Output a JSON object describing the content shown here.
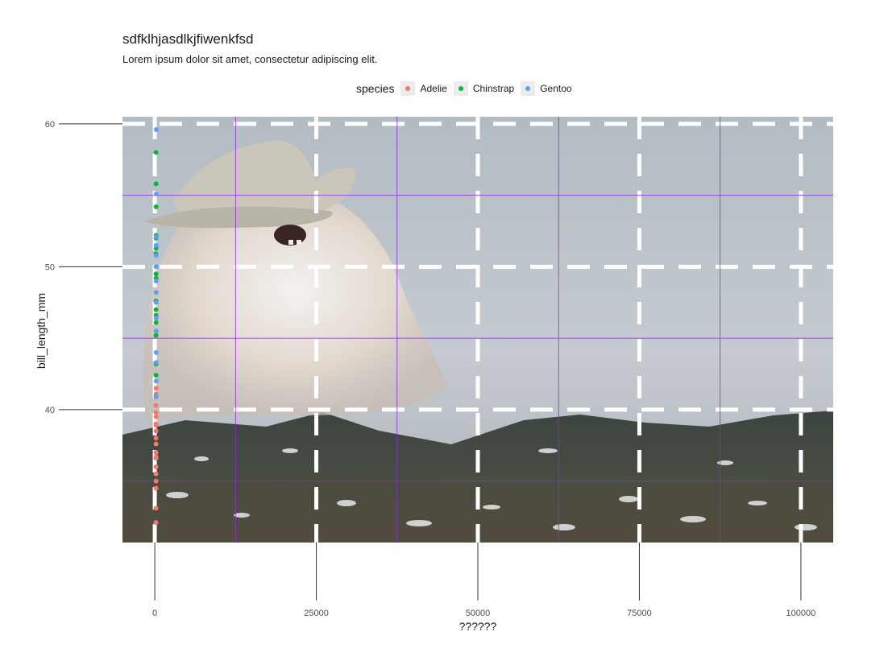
{
  "chart_data": {
    "type": "scatter",
    "title": "sdfklhjasdlkjfiwenkfsd",
    "subtitle": "Lorem ipsum dolor sit amet, consectetur adipiscing elit.",
    "xlabel": "??????",
    "ylabel": "bill_length_mm",
    "xlim": [
      -5000,
      105000
    ],
    "ylim": [
      30.7,
      60.5
    ],
    "x_ticks": [
      0,
      25000,
      50000,
      75000,
      100000
    ],
    "x_tick_labels": [
      "0",
      "25000",
      "50000",
      "75000",
      "100000"
    ],
    "y_ticks": [
      40,
      50,
      60
    ],
    "y_tick_labels": [
      "40",
      "50",
      "60"
    ],
    "grid": true,
    "legend": {
      "title": "species",
      "position": "top"
    },
    "background": "photo of a fluffy cat wearing a cowboy hat in a mountain landscape",
    "series": [
      {
        "name": "Adelie",
        "color": "#F8766D",
        "points": [
          [
            181,
            32.1
          ],
          [
            186,
            33.1
          ],
          [
            190,
            34.5
          ],
          [
            193,
            35.0
          ],
          [
            186,
            35.5
          ],
          [
            190,
            36.0
          ],
          [
            192,
            36.6
          ],
          [
            181,
            37.0
          ],
          [
            190,
            37.6
          ],
          [
            184,
            38.0
          ],
          [
            195,
            38.5
          ],
          [
            186,
            38.9
          ],
          [
            180,
            39.0
          ],
          [
            191,
            39.5
          ],
          [
            187,
            39.8
          ],
          [
            193,
            40.3
          ],
          [
            188,
            40.9
          ],
          [
            191,
            41.1
          ],
          [
            196,
            41.5
          ],
          [
            190,
            36.7
          ]
        ]
      },
      {
        "name": "Chinstrap",
        "color": "#00BA38",
        "points": [
          [
            192,
            40.9
          ],
          [
            195,
            42.4
          ],
          [
            196,
            43.2
          ],
          [
            193,
            45.2
          ],
          [
            201,
            46.1
          ],
          [
            195,
            46.6
          ],
          [
            190,
            47.0
          ],
          [
            197,
            47.6
          ],
          [
            198,
            49.2
          ],
          [
            193,
            49.5
          ],
          [
            201,
            50.0
          ],
          [
            195,
            50.9
          ],
          [
            197,
            51.3
          ],
          [
            198,
            52.0
          ],
          [
            203,
            52.2
          ],
          [
            195,
            54.2
          ],
          [
            198,
            55.8
          ],
          [
            193,
            58.0
          ]
        ]
      },
      {
        "name": "Gentoo",
        "color": "#619CFF",
        "points": [
          [
            211,
            40.9
          ],
          [
            210,
            42.0
          ],
          [
            215,
            43.3
          ],
          [
            214,
            44.0
          ],
          [
            215,
            45.5
          ],
          [
            216,
            46.4
          ],
          [
            217,
            47.5
          ],
          [
            219,
            48.2
          ],
          [
            220,
            49.0
          ],
          [
            221,
            50.0
          ],
          [
            222,
            50.8
          ],
          [
            223,
            51.5
          ],
          [
            225,
            52.1
          ],
          [
            229,
            55.1
          ],
          [
            230,
            59.6
          ]
        ]
      }
    ]
  }
}
